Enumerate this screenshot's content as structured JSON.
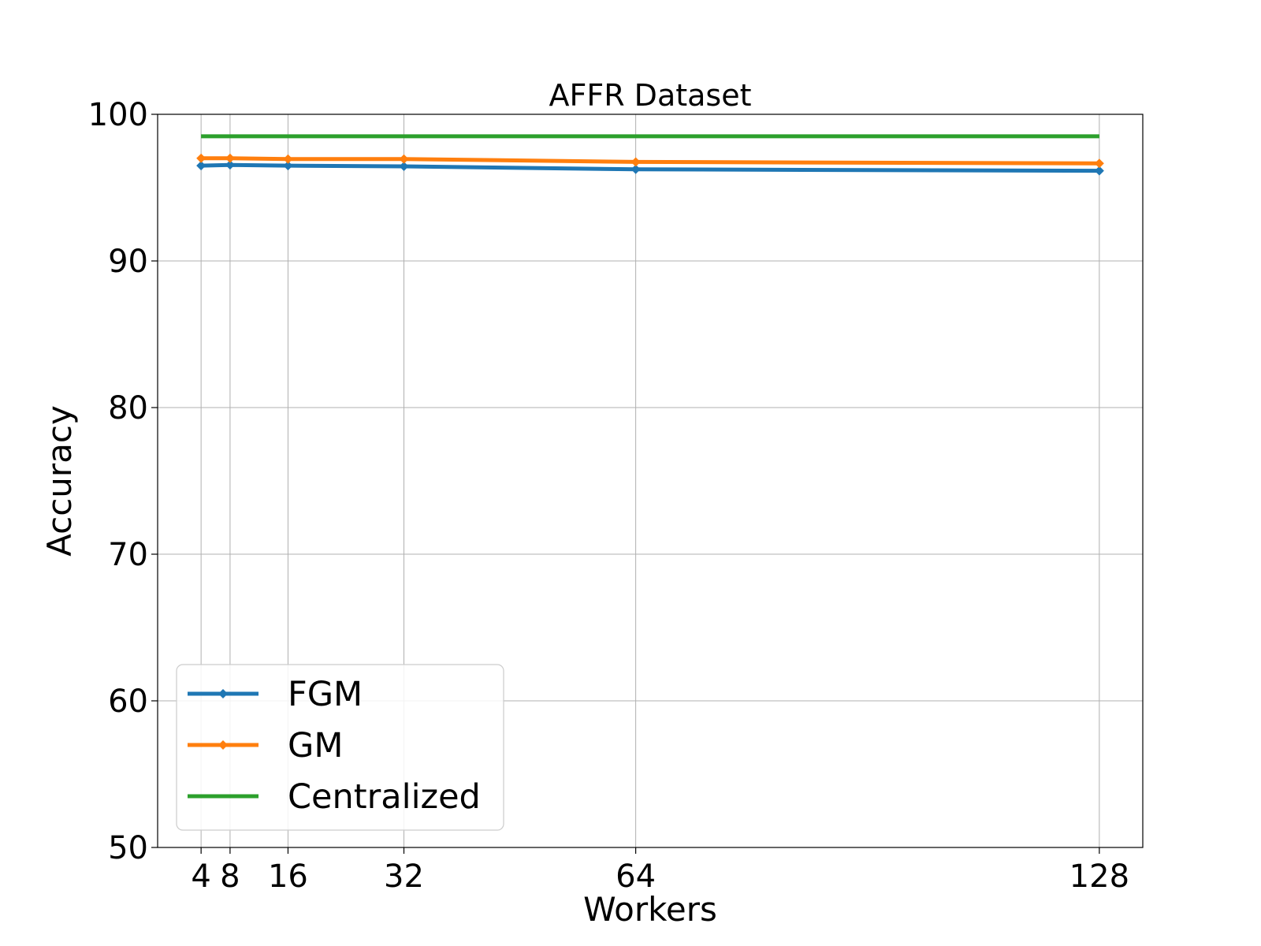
{
  "chart_data": {
    "type": "line",
    "title": "AFFR Dataset",
    "xlabel": "Workers",
    "ylabel": "Accuracy",
    "x": [
      4,
      8,
      16,
      32,
      64,
      128
    ],
    "x_tick_labels": [
      "4",
      "8",
      "16",
      "32",
      "64",
      "128"
    ],
    "xlim": [
      -2,
      134
    ],
    "ylim": [
      50,
      100
    ],
    "yticks": [
      50,
      60,
      70,
      80,
      90,
      100
    ],
    "y_tick_labels": [
      "50",
      "60",
      "70",
      "80",
      "90",
      "100"
    ],
    "grid": true,
    "legend_position": "lower-left",
    "series": [
      {
        "name": "FGM",
        "color": "#1f77b4",
        "marker": "diamond",
        "values": [
          96.5,
          96.55,
          96.5,
          96.45,
          96.25,
          96.15
        ]
      },
      {
        "name": "GM",
        "color": "#ff7f0e",
        "marker": "diamond",
        "values": [
          97.0,
          97.0,
          96.95,
          96.95,
          96.75,
          96.65
        ]
      },
      {
        "name": "Centralized",
        "color": "#2ca02c",
        "marker": "none",
        "values": [
          98.5,
          98.5,
          98.5,
          98.5,
          98.5,
          98.5
        ]
      }
    ]
  }
}
